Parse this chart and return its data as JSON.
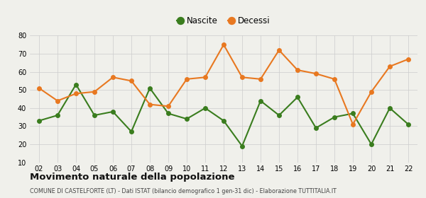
{
  "years": [
    "02",
    "03",
    "04",
    "05",
    "06",
    "07",
    "08",
    "09",
    "10",
    "11",
    "12",
    "13",
    "14",
    "15",
    "16",
    "17",
    "18",
    "19",
    "20",
    "21",
    "22"
  ],
  "nascite": [
    33,
    36,
    53,
    36,
    38,
    27,
    51,
    37,
    34,
    40,
    33,
    19,
    44,
    36,
    46,
    29,
    35,
    37,
    20,
    40,
    31
  ],
  "decessi": [
    51,
    44,
    48,
    49,
    57,
    55,
    42,
    41,
    56,
    57,
    75,
    57,
    56,
    72,
    61,
    59,
    56,
    31,
    49,
    63,
    67
  ],
  "nascite_color": "#3a7d1e",
  "decessi_color": "#e87820",
  "bg_color": "#f0f0eb",
  "grid_color": "#cccccc",
  "title": "Movimento naturale della popolazione",
  "subtitle": "COMUNE DI CASTELFORTE (LT) - Dati ISTAT (bilancio demografico 1 gen-31 dic) - Elaborazione TUTTITALIA.IT",
  "ylim": [
    10,
    80
  ],
  "yticks": [
    10,
    20,
    30,
    40,
    50,
    60,
    70,
    80
  ],
  "legend_nascite": "Nascite",
  "legend_decessi": "Decessi",
  "marker_size": 4,
  "line_width": 1.5
}
